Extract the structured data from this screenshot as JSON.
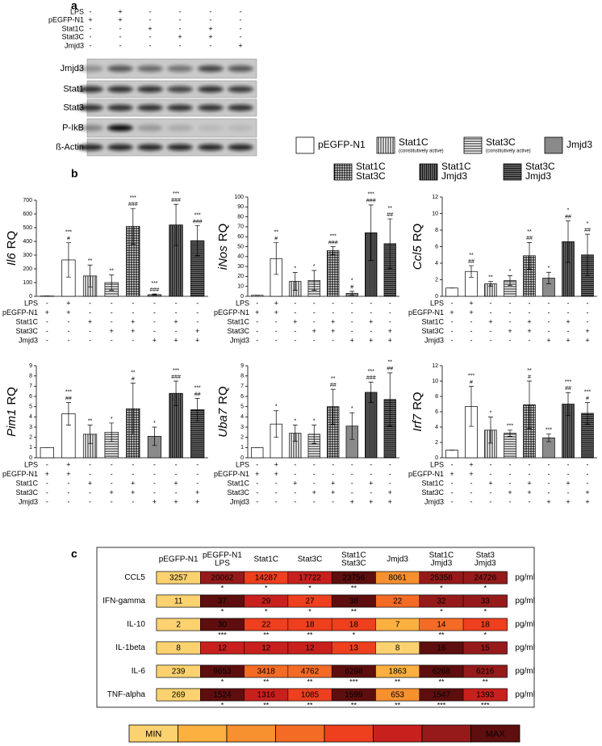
{
  "panel_a": {
    "label": "a",
    "treatments": [
      {
        "name": "LPS",
        "signs": [
          "-",
          "+",
          "-",
          "-",
          "-",
          "-"
        ]
      },
      {
        "name": "pEGFP-N1",
        "signs": [
          "+",
          "+",
          "-",
          "-",
          "-",
          "-"
        ]
      },
      {
        "name": "Stat1C",
        "signs": [
          "-",
          "-",
          "+",
          "-",
          "+",
          "-"
        ]
      },
      {
        "name": "Stat3C",
        "signs": [
          "-",
          "-",
          "-",
          "+",
          "+",
          "-"
        ]
      },
      {
        "name": "Jmjd3",
        "signs": [
          "-",
          "-",
          "-",
          "-",
          "-",
          "+"
        ]
      }
    ],
    "blots": [
      "Jmjd3",
      "Stat1",
      "Stat3",
      "P-IkB",
      "ß-Actin"
    ]
  },
  "legend": [
    {
      "lines": [
        "pEGFP-N1"
      ],
      "pattern": "open"
    },
    {
      "lines": [
        "Stat1C"
      ],
      "note": "(constitutively active)",
      "pattern": "vlines"
    },
    {
      "lines": [
        "Stat3C"
      ],
      "note": "(constitutively active)",
      "pattern": "hlines"
    },
    {
      "lines": [
        "Jmjd3"
      ],
      "pattern": "gray"
    },
    {
      "lines": [
        "Stat1C",
        "Stat3C"
      ],
      "pattern": "grid"
    },
    {
      "lines": [
        "Stat1C",
        "Jmjd3"
      ],
      "pattern": "vlines-dark"
    },
    {
      "lines": [
        "Stat3C",
        "Jmjd3"
      ],
      "pattern": "hlines-dark"
    }
  ],
  "panel_b_label": "b",
  "bar_patterns": [
    "open",
    "open",
    "vlines",
    "hlines",
    "grid",
    "gray",
    "vlines-dark",
    "hlines-dark"
  ],
  "treatments": [
    {
      "name": "LPS",
      "signs": [
        "-",
        "+",
        "-",
        "-",
        "-",
        "-",
        "-",
        "-"
      ]
    },
    {
      "name": "pEGFP-N1",
      "signs": [
        "+",
        "+",
        "-",
        "-",
        "-",
        "-",
        "-",
        "-"
      ]
    },
    {
      "name": "Stat1C",
      "signs": [
        "-",
        "-",
        "+",
        "-",
        "+",
        "-",
        "+",
        "-"
      ]
    },
    {
      "name": "Stat3C",
      "signs": [
        "-",
        "-",
        "-",
        "+",
        "+",
        "-",
        "-",
        "+"
      ]
    },
    {
      "name": "Jmjd3",
      "signs": [
        "-",
        "-",
        "-",
        "-",
        "-",
        "+",
        "+",
        "+"
      ]
    }
  ],
  "chart_data": [
    {
      "type": "bar",
      "ylabel_gene": "Il6",
      "ylabel_suffix": "RQ",
      "ylim": [
        0,
        700
      ],
      "yticks": [
        0,
        100,
        200,
        300,
        400,
        500,
        600,
        700
      ],
      "values": [
        2,
        265,
        148,
        100,
        510,
        12,
        520,
        405
      ],
      "errors": [
        0,
        125,
        80,
        55,
        130,
        5,
        150,
        110
      ],
      "annotations": [
        null,
        [
          "***",
          "#"
        ],
        [
          "**"
        ],
        [
          "**"
        ],
        [
          "***",
          "###"
        ],
        [
          "***",
          "###"
        ],
        [
          "***",
          "###"
        ],
        [
          "***",
          "###"
        ]
      ]
    },
    {
      "type": "bar",
      "ylabel_gene": "iNos",
      "ylabel_suffix": "RQ",
      "ylim": [
        0,
        100
      ],
      "yticks": [
        0,
        10,
        20,
        30,
        40,
        50,
        60,
        70,
        80,
        90,
        100
      ],
      "values": [
        1,
        38,
        15,
        16,
        46,
        3,
        64,
        53
      ],
      "errors": [
        0,
        16,
        9,
        10,
        4,
        2,
        28,
        25
      ],
      "annotations": [
        null,
        [
          "**",
          "#"
        ],
        [
          "*"
        ],
        [
          "*"
        ],
        [
          "***",
          "###"
        ],
        [
          "*",
          "#"
        ],
        [
          "***",
          "###"
        ],
        [
          "**",
          "##"
        ]
      ]
    },
    {
      "type": "bar",
      "ylabel_gene": "Ccl5",
      "ylabel_suffix": "RQ",
      "ylim": [
        0,
        12
      ],
      "yticks": [
        0,
        2,
        4,
        6,
        8,
        10,
        12
      ],
      "values": [
        1,
        3,
        1.5,
        1.9,
        4.9,
        2.2,
        6.6,
        5
      ],
      "errors": [
        0,
        0.7,
        0.3,
        0.6,
        1.6,
        0.7,
        2.5,
        2.5
      ],
      "annotations": [
        null,
        [
          "**",
          "##"
        ],
        [
          "**"
        ],
        [
          "*"
        ],
        [
          "**",
          "##"
        ],
        [
          "*"
        ],
        [
          "*",
          "##"
        ],
        [
          "*",
          "##"
        ]
      ]
    },
    {
      "type": "bar",
      "ylabel_gene": "Pim1",
      "ylabel_suffix": "RQ",
      "ylim": [
        0,
        9
      ],
      "yticks": [
        0,
        1,
        2,
        3,
        4,
        5,
        6,
        7,
        8,
        9
      ],
      "values": [
        1,
        4.3,
        2.3,
        2.5,
        4.8,
        2.1,
        6.3,
        4.7
      ],
      "errors": [
        0,
        1.1,
        0.9,
        0.9,
        2.5,
        0.9,
        1.2,
        1.1
      ],
      "annotations": [
        null,
        [
          "***",
          "##"
        ],
        [
          "**"
        ],
        [
          "*"
        ],
        [
          "**",
          "#"
        ],
        [
          "*"
        ],
        [
          "***",
          "###"
        ],
        [
          "***",
          "##"
        ]
      ]
    },
    {
      "type": "bar",
      "ylabel_gene": "Uba7",
      "ylabel_suffix": "RQ",
      "ylim": [
        0,
        9
      ],
      "yticks": [
        0,
        1,
        2,
        3,
        4,
        5,
        6,
        7,
        8,
        9
      ],
      "values": [
        1,
        3.3,
        2.4,
        2.3,
        5,
        3.1,
        6.4,
        5.7
      ],
      "errors": [
        0,
        1.3,
        0.8,
        0.9,
        1.7,
        1.3,
        1,
        2.6
      ],
      "annotations": [
        null,
        [
          "*"
        ],
        [
          "*"
        ],
        [
          "*"
        ],
        [
          "**",
          "##"
        ],
        [
          "*"
        ],
        [
          "***",
          "###"
        ],
        [
          "**",
          "##"
        ]
      ]
    },
    {
      "type": "bar",
      "ylabel_gene": "Irf7",
      "ylabel_suffix": "RQ",
      "ylim": [
        0,
        12
      ],
      "yticks": [
        0,
        2,
        4,
        6,
        8,
        10,
        12
      ],
      "values": [
        1,
        6.7,
        3.6,
        3.2,
        6.9,
        2.6,
        7,
        5.8
      ],
      "errors": [
        0,
        2.6,
        1.7,
        0.4,
        3.1,
        0.5,
        1.5,
        1.4
      ],
      "annotations": [
        null,
        [
          "***",
          "#"
        ],
        [
          "*"
        ],
        [
          "***"
        ],
        [
          "**",
          "#"
        ],
        [
          "***"
        ],
        [
          "***",
          "##"
        ],
        [
          "***",
          "#"
        ]
      ]
    }
  ],
  "panel_c": {
    "label": "c",
    "unit": "pg/ml",
    "columns": [
      [
        "pEGFP-N1"
      ],
      [
        "pEGFP-N1",
        "LPS"
      ],
      [
        "Stat1C"
      ],
      [
        "Stat3C"
      ],
      [
        "Stat1C",
        "Stat3C"
      ],
      [
        "Jmjd3"
      ],
      [
        "Stat1C",
        "Jmjd3"
      ],
      [
        "Stat3",
        "Jmjd3"
      ]
    ],
    "rows": [
      {
        "name": "CCL5",
        "values": [
          3257,
          20062,
          14287,
          17722,
          23756,
          8061,
          25358,
          24726
        ],
        "stars": [
          null,
          "*",
          "*",
          "*",
          "**",
          null,
          "*",
          "*"
        ],
        "colors": [
          "#fcd270",
          "#961a1a",
          "#ee3f1f",
          "#c8201d",
          "#5e0e0e",
          "#f7902f",
          "#961a1a",
          "#961a1a"
        ]
      },
      {
        "name": "IFN-gamma",
        "values": [
          11,
          37,
          29,
          27,
          38,
          22,
          32,
          33
        ],
        "stars": [
          null,
          "*",
          "*",
          "*",
          "**",
          null,
          "*",
          "*"
        ],
        "colors": [
          "#fcd270",
          "#5e0e0e",
          "#c8201d",
          "#ee3f1f",
          "#5e0e0e",
          "#f46b25",
          "#961a1a",
          "#961a1a"
        ]
      },
      {
        "name": "IL-10",
        "values": [
          2,
          30,
          22,
          18,
          18,
          7,
          14,
          18
        ],
        "stars": [
          null,
          "***",
          "**",
          "**",
          "*",
          null,
          "**",
          "*"
        ],
        "colors": [
          "#fcd270",
          "#5e0e0e",
          "#ee3f1f",
          "#ee3f1f",
          "#ee3f1f",
          "#fbb040",
          "#f46b25",
          "#ee3f1f"
        ]
      },
      {
        "name": "IL-1beta",
        "values": [
          8,
          12,
          12,
          12,
          13,
          8,
          16,
          15
        ],
        "colors": [
          "#fcd270",
          "#c8201d",
          "#c8201d",
          "#c8201d",
          "#ee3f1f",
          "#fcd270",
          "#5e0e0e",
          "#961a1a"
        ]
      },
      {
        "name": "IL-6",
        "values": [
          239,
          9653,
          3418,
          4762,
          6298,
          1863,
          6268,
          6216
        ],
        "stars": [
          null,
          "*",
          "**",
          "**",
          "***",
          "**",
          "**",
          "**"
        ],
        "colors": [
          "#fcd270",
          "#5e0e0e",
          "#f46b25",
          "#f46b25",
          "#5e0e0e",
          "#fbb040",
          "#5e0e0e",
          "#961a1a"
        ]
      },
      {
        "name": "TNF-alpha",
        "values": [
          269,
          1524,
          1316,
          1085,
          1599,
          653,
          1547,
          1393
        ],
        "stars": [
          null,
          "*",
          "**",
          "**",
          "**",
          "**",
          "***",
          "***"
        ],
        "colors": [
          "#fcd270",
          "#5e0e0e",
          "#c8201d",
          "#ee3f1f",
          "#5e0e0e",
          "#f7902f",
          "#5e0e0e",
          "#c8201d"
        ]
      }
    ],
    "scale": {
      "min_label": "MIN",
      "max_label": "MAX",
      "colors": [
        "#fcd270",
        "#fbb040",
        "#f7902f",
        "#f46b25",
        "#ee3f1f",
        "#c8201d",
        "#961a1a",
        "#5e0e0e"
      ]
    }
  }
}
